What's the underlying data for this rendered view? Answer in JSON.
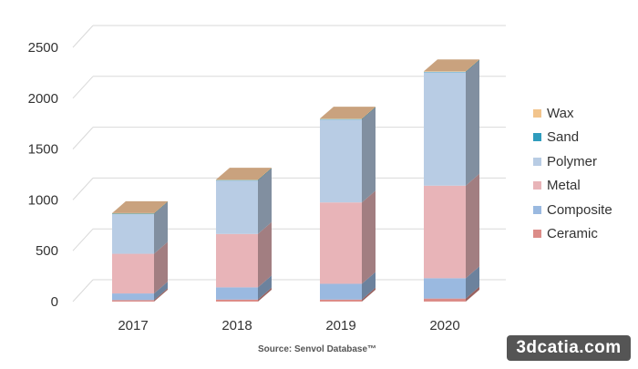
{
  "chart_data": {
    "type": "bar",
    "stacked": true,
    "style": "3d",
    "categories": [
      "2017",
      "2018",
      "2019",
      "2020"
    ],
    "series": [
      {
        "name": "Ceramic",
        "color": "#dc8c88",
        "values": [
          15,
          20,
          20,
          30
        ]
      },
      {
        "name": "Composite",
        "color": "#9ab9e0",
        "values": [
          65,
          120,
          155,
          200
        ]
      },
      {
        "name": "Metal",
        "color": "#e8b4b8",
        "values": [
          390,
          525,
          800,
          910
        ]
      },
      {
        "name": "Polymer",
        "color": "#b8cce4",
        "values": [
          390,
          525,
          815,
          1115
        ]
      },
      {
        "name": "Sand",
        "color": "#2f9cbd",
        "values": [
          5,
          5,
          5,
          5
        ]
      },
      {
        "name": "Wax",
        "color": "#f2c48c",
        "values": [
          5,
          5,
          5,
          5
        ]
      }
    ],
    "yticks": [
      0,
      500,
      1000,
      1500,
      2000,
      2500
    ],
    "ylim": [
      0,
      2500
    ],
    "grid": true,
    "legend_position": "right",
    "top_face_color": "#c9a27e",
    "source": "Source: Senvol Database™"
  },
  "watermark": "3dcatia.com"
}
